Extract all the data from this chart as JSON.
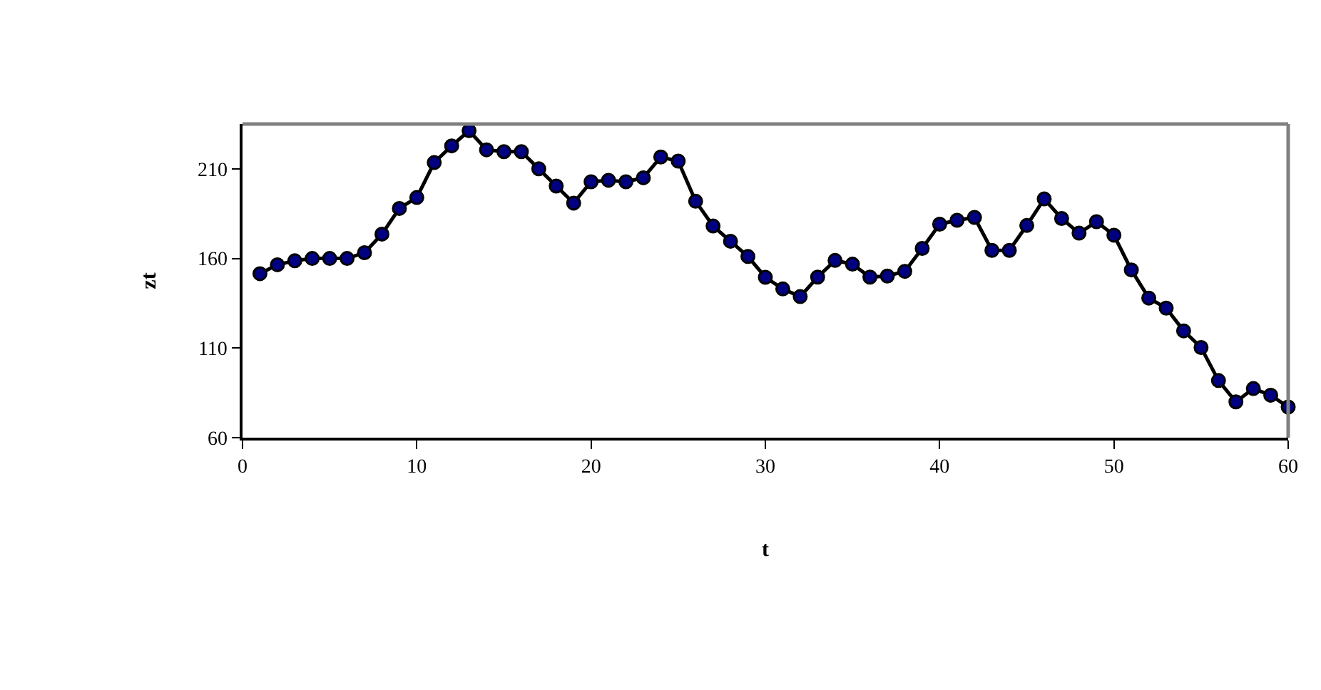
{
  "chart_data": {
    "type": "line",
    "xlabel": "t",
    "ylabel": "zt",
    "x": [
      1,
      2,
      3,
      4,
      5,
      6,
      7,
      8,
      9,
      10,
      11,
      12,
      13,
      14,
      15,
      16,
      17,
      18,
      19,
      20,
      21,
      22,
      23,
      24,
      25,
      26,
      27,
      28,
      29,
      30,
      31,
      32,
      33,
      34,
      35,
      36,
      37,
      38,
      39,
      40,
      41,
      42,
      43,
      44,
      45,
      46,
      47,
      48,
      49,
      50,
      51,
      52,
      53,
      54,
      55,
      56,
      57,
      58,
      59,
      60
    ],
    "series": [
      {
        "color": "#000080",
        "values": [
          151.5,
          156.5,
          158.7,
          160,
          160,
          160,
          163.2,
          173.6,
          187.9,
          194,
          213.5,
          222.8,
          231.3,
          220.6,
          219.6,
          219.6,
          210,
          200.4,
          190.9,
          202.8,
          203.6,
          202.8,
          205,
          216.6,
          214.3,
          191.9,
          178.1,
          169.6,
          161.1,
          149.5,
          143,
          138.7,
          149.6,
          158.9,
          156.8,
          149.6,
          150.2,
          152.8,
          165.6,
          179.1,
          181.3,
          182.9,
          164.5,
          164.5,
          178.4,
          193.2,
          182.3,
          174.1,
          180.5,
          173,
          153.6,
          137.9,
          132.3,
          119.6,
          110.3,
          91.9,
          80,
          87.4,
          83.7,
          77.1
        ]
      }
    ],
    "xlim": [
      0,
      60
    ],
    "xticks": [
      0,
      10,
      20,
      30,
      40,
      50,
      60
    ],
    "ylim": [
      60,
      235
    ],
    "yticks": [
      60,
      110,
      160,
      210
    ],
    "legend": false,
    "marker": "circle",
    "line_style": "solid"
  }
}
